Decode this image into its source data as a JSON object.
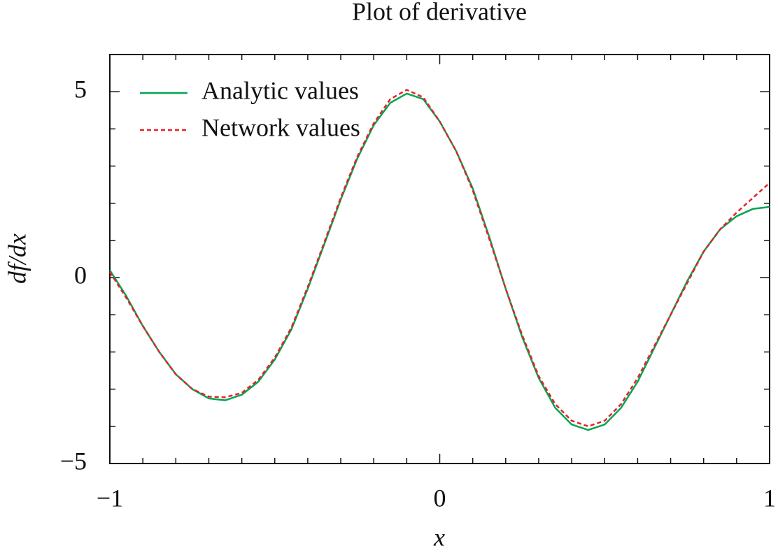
{
  "chart_data": {
    "type": "line",
    "title": "Plot of derivative",
    "xlabel": "x",
    "ylabel": "df/dx",
    "x": [
      -1,
      -0.95,
      -0.9,
      -0.85,
      -0.8,
      -0.75,
      -0.7,
      -0.65,
      -0.6,
      -0.55,
      -0.5,
      -0.45,
      -0.4,
      -0.35,
      -0.3,
      -0.25,
      -0.2,
      -0.15,
      -0.1,
      -0.05,
      0,
      0.05,
      0.1,
      0.15,
      0.2,
      0.25,
      0.3,
      0.35,
      0.4,
      0.45,
      0.5,
      0.55,
      0.6,
      0.65,
      0.7,
      0.75,
      0.8,
      0.85,
      0.9,
      0.95,
      1
    ],
    "series": [
      {
        "name": "Analytic values",
        "color": "#00a651",
        "dash": false,
        "values": [
          0.2,
          -0.5,
          -1.3,
          -2.0,
          -2.6,
          -3.0,
          -3.25,
          -3.3,
          -3.15,
          -2.8,
          -2.2,
          -1.4,
          -0.3,
          0.9,
          2.1,
          3.2,
          4.1,
          4.7,
          4.95,
          4.8,
          4.2,
          3.4,
          2.4,
          1.1,
          -0.3,
          -1.6,
          -2.7,
          -3.5,
          -3.95,
          -4.1,
          -3.95,
          -3.5,
          -2.8,
          -1.9,
          -1.0,
          -0.1,
          0.7,
          1.3,
          1.65,
          1.85,
          1.9
        ]
      },
      {
        "name": "Network values",
        "color": "#e8202a",
        "dash": true,
        "values": [
          0.15,
          -0.55,
          -1.3,
          -2.0,
          -2.6,
          -3.0,
          -3.2,
          -3.22,
          -3.1,
          -2.75,
          -2.15,
          -1.35,
          -0.25,
          0.95,
          2.15,
          3.25,
          4.15,
          4.8,
          5.05,
          4.85,
          4.2,
          3.4,
          2.35,
          1.05,
          -0.3,
          -1.55,
          -2.65,
          -3.4,
          -3.85,
          -4.0,
          -3.85,
          -3.4,
          -2.7,
          -1.85,
          -1.0,
          -0.15,
          0.7,
          1.3,
          1.75,
          2.15,
          2.55
        ]
      }
    ],
    "xlim": [
      -1,
      1
    ],
    "ylim": [
      -5,
      6
    ],
    "xticks": [
      {
        "value": -1,
        "label": "−1"
      },
      0,
      1
    ],
    "yticks": [
      {
        "value": -5,
        "label": "−5"
      },
      0,
      5
    ],
    "xticks_minor": [
      -0.9,
      -0.8,
      -0.7,
      -0.6,
      -0.5,
      -0.4,
      -0.3,
      -0.2,
      -0.1,
      0.1,
      0.2,
      0.3,
      0.4,
      0.5,
      0.6,
      0.7,
      0.8,
      0.9
    ],
    "yticks_minor": [
      -4,
      -3,
      -2,
      -1,
      1,
      2,
      3,
      4,
      6
    ],
    "legend": "upper left"
  }
}
